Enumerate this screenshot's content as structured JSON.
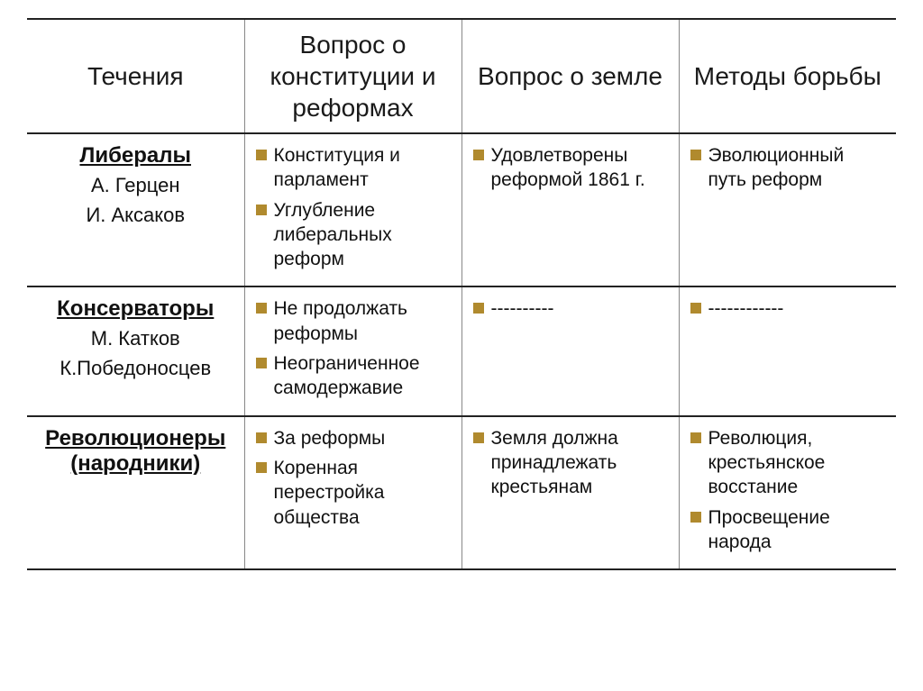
{
  "columns": [
    "Течения",
    "Вопрос о конституции и реформах",
    "Вопрос о земле",
    "Методы борьбы"
  ],
  "rows": [
    {
      "title": "Либералы",
      "subs": [
        "А. Герцен",
        "И. Аксаков"
      ],
      "c2": [
        "Конституция и парламент",
        "Углубление либеральных реформ"
      ],
      "c3": [
        "Удовлетворены реформой 1861 г."
      ],
      "c4": [
        "Эволюционный путь реформ"
      ]
    },
    {
      "title": "Консерваторы",
      "subs": [
        "М. Катков",
        "К.Победоносцев"
      ],
      "c2": [
        "Не продолжать реформы",
        "Неограниченное самодержавие"
      ],
      "c3": [
        "----------"
      ],
      "c4": [
        "------------"
      ]
    },
    {
      "title": "Революционеры (народники)",
      "subs": [],
      "c2": [
        "За реформы",
        "Коренная перестройка общества"
      ],
      "c3": [
        "Земля должна принадлежать крестьянам"
      ],
      "c4": [
        "Революция, крестьянское восстание",
        "Просвещение народа"
      ]
    }
  ],
  "colors": {
    "bullet": "#b08a2e",
    "border_dark": "#222222",
    "border_light": "#888888",
    "text": "#111111",
    "background": "#ffffff"
  },
  "fonts": {
    "header_size": 28,
    "row_title_size": 24,
    "row_sub_size": 22,
    "body_size": 21
  },
  "layout": {
    "column_widths_pct": [
      25,
      25,
      25,
      25
    ],
    "bullet_shape": "square"
  }
}
